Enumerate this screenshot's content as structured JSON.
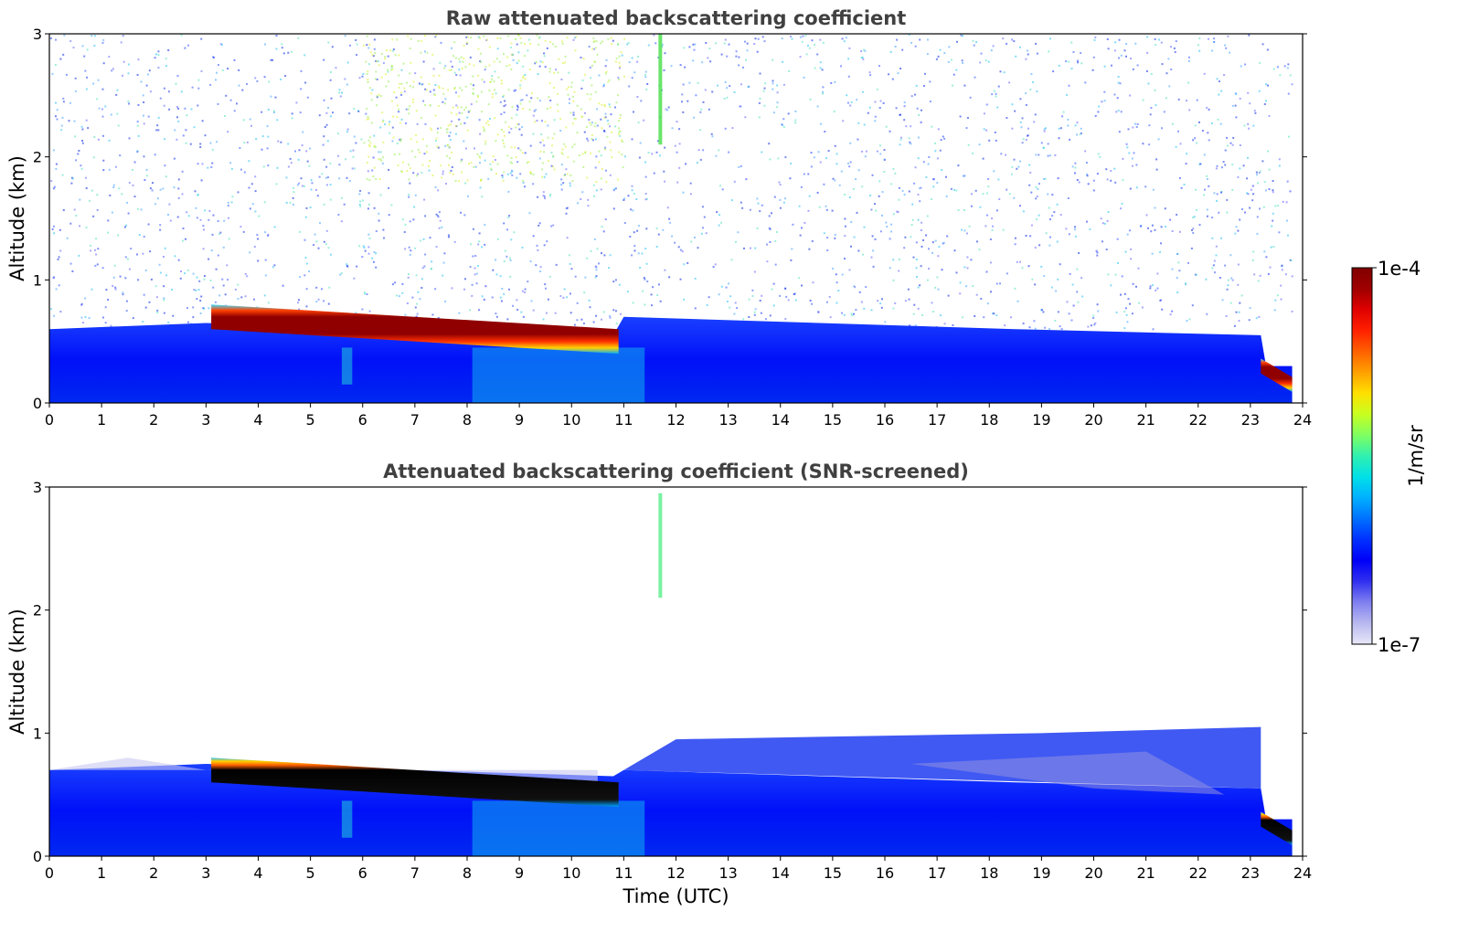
{
  "chart_data": [
    {
      "type": "heatmap",
      "title": "Raw attenuated backscattering coefficient",
      "xlabel": "",
      "ylabel": "Altitude (km)",
      "xlim": [
        0,
        24
      ],
      "ylim": [
        0,
        3
      ],
      "x_ticks": [
        "0",
        "1",
        "2",
        "3",
        "4",
        "5",
        "6",
        "7",
        "8",
        "9",
        "10",
        "11",
        "12",
        "13",
        "14",
        "15",
        "16",
        "17",
        "18",
        "19",
        "20",
        "21",
        "22",
        "23",
        "24"
      ],
      "y_ticks": [
        "0",
        "1",
        "2",
        "3"
      ],
      "features": [
        {
          "kind": "aerosol-layer",
          "t_start": 0,
          "t_end": 23.8,
          "alt_bottom": 0,
          "alt_top_start": 0.6,
          "alt_top_end": 0.3
        },
        {
          "kind": "cloud-layer",
          "t_start": 3.1,
          "t_end": 10.9,
          "alt_start": 0.65,
          "alt_end": 0.5,
          "thickness": 0.2
        },
        {
          "kind": "cloud-layer",
          "t_start": 23.2,
          "t_end": 23.8,
          "alt_start": 0.25,
          "alt_end": 0.15,
          "thickness": 0.12
        },
        {
          "kind": "cirrus-streak",
          "t": 11.7,
          "alt_bottom": 2.1,
          "alt_top": 3
        }
      ]
    },
    {
      "type": "heatmap",
      "title": "Attenuated backscattering coefficient (SNR-screened)",
      "xlabel": "Time (UTC)",
      "ylabel": "Altitude (km)",
      "xlim": [
        0,
        24
      ],
      "ylim": [
        0,
        3
      ],
      "x_ticks": [
        "0",
        "1",
        "2",
        "3",
        "4",
        "5",
        "6",
        "7",
        "8",
        "9",
        "10",
        "11",
        "12",
        "13",
        "14",
        "15",
        "16",
        "17",
        "18",
        "19",
        "20",
        "21",
        "22",
        "23",
        "24"
      ],
      "y_ticks": [
        "0",
        "1",
        "2",
        "3"
      ],
      "features": [
        {
          "kind": "aerosol-layer",
          "t_start": 0,
          "t_end": 23.8,
          "alt_bottom": 0,
          "alt_top_start": 0.7,
          "alt_top_end": 0.3
        },
        {
          "kind": "cloud-layer",
          "t_start": 3.1,
          "t_end": 10.9,
          "alt_start": 0.65,
          "alt_end": 0.5,
          "thickness": 0.2
        },
        {
          "kind": "cloud-layer",
          "t_start": 23.2,
          "t_end": 23.8,
          "alt_start": 0.25,
          "alt_end": 0.15,
          "thickness": 0.12
        },
        {
          "kind": "cirrus-streak",
          "t": 11.7,
          "alt_bottom": 2.1,
          "alt_top": 2.95
        }
      ]
    }
  ],
  "colorbar": {
    "label": "1/m/sr",
    "max_label": "1e-4",
    "min_label": "1e-7",
    "scale": "log",
    "range": [
      1e-07,
      0.0001
    ],
    "colors": [
      "#e8e8f8",
      "#b8b8f0",
      "#8080f0",
      "#3030f0",
      "#0000f8",
      "#0030ff",
      "#0070ff",
      "#00b0ff",
      "#00e0e8",
      "#30f0b0",
      "#80ff60",
      "#c8ff20",
      "#ffe000",
      "#ffa000",
      "#ff6000",
      "#ff2000",
      "#e00000",
      "#a00000",
      "#800000"
    ]
  }
}
